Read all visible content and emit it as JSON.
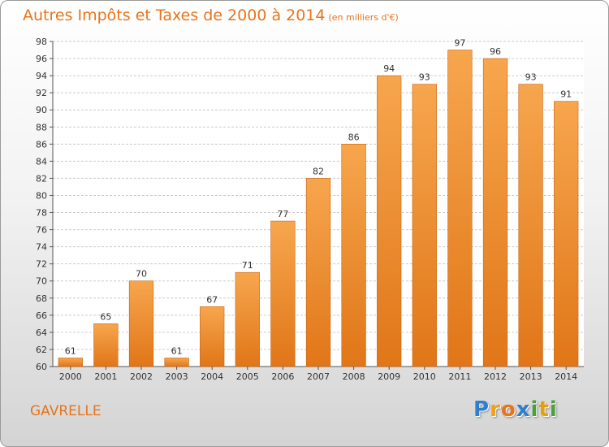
{
  "chart_data": {
    "type": "bar",
    "title": "Autres Impôts et Taxes de 2000 à 2014",
    "unit_note": "(en milliers d'€)",
    "categories": [
      "2000",
      "2001",
      "2002",
      "2003",
      "2004",
      "2005",
      "2006",
      "2007",
      "2008",
      "2009",
      "2010",
      "2011",
      "2012",
      "2013",
      "2014"
    ],
    "values": [
      61,
      65,
      70,
      61,
      67,
      71,
      77,
      82,
      86,
      94,
      93,
      97,
      96,
      93,
      91
    ],
    "ylim": [
      60,
      98
    ],
    "yticks": [
      60,
      62,
      64,
      66,
      68,
      70,
      72,
      74,
      76,
      78,
      80,
      82,
      84,
      86,
      88,
      90,
      92,
      94,
      96,
      98
    ],
    "grid": true,
    "colors": {
      "bar_light": "#f7a64e",
      "bar_dark": "#e07618",
      "bar_stroke": "#c9630f",
      "grid": "#cccccc",
      "accent": "#e8741c"
    }
  },
  "commune": "GAVRELLE",
  "logo": {
    "letters": [
      "P",
      "r",
      "o",
      "x",
      "i",
      "t",
      "i"
    ],
    "colors": [
      "#2f7fd0",
      "#f0a01c",
      "#e8741c",
      "#2f7fd0",
      "#4aa13a",
      "#e0a010",
      "#4aa13a"
    ]
  }
}
